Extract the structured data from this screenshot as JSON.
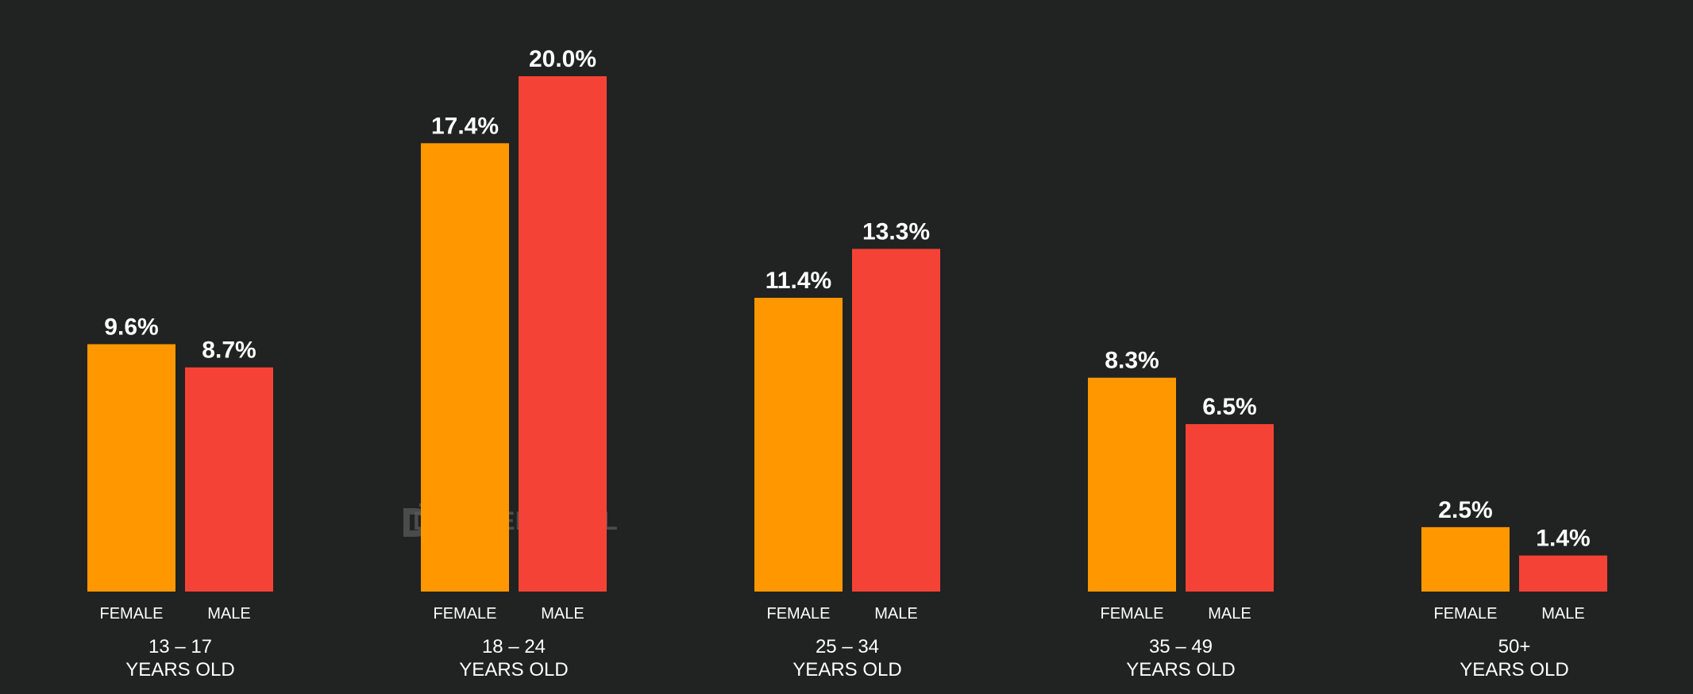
{
  "colors": {
    "background": "#212222",
    "female": "#FF9800",
    "male": "#F44336",
    "text": "#FFFFFF",
    "watermark": "#5A5A5A"
  },
  "watermark": {
    "text": "DATAREPORTAL",
    "icon": "datareportal-logo-icon"
  },
  "chart_data": {
    "type": "bar",
    "title": "",
    "xlabel": "",
    "ylabel": "",
    "ylim": [
      0,
      20
    ],
    "grid": false,
    "categories": [
      {
        "line1": "13 – 17",
        "line2": "YEARS OLD"
      },
      {
        "line1": "18 – 24",
        "line2": "YEARS OLD"
      },
      {
        "line1": "25 – 34",
        "line2": "YEARS OLD"
      },
      {
        "line1": "35 – 49",
        "line2": "YEARS OLD"
      },
      {
        "line1": "50+",
        "line2": "YEARS OLD"
      }
    ],
    "series": [
      {
        "key": "female",
        "label": "FEMALE",
        "values": [
          9.6,
          17.4,
          11.4,
          8.3,
          2.5
        ],
        "value_labels": [
          "9.6%",
          "17.4%",
          "11.4%",
          "8.3%",
          "2.5%"
        ]
      },
      {
        "key": "male",
        "label": "MALE",
        "values": [
          8.7,
          20.0,
          13.3,
          6.5,
          1.4
        ],
        "value_labels": [
          "8.7%",
          "20.0%",
          "13.3%",
          "6.5%",
          "1.4%"
        ]
      }
    ]
  }
}
